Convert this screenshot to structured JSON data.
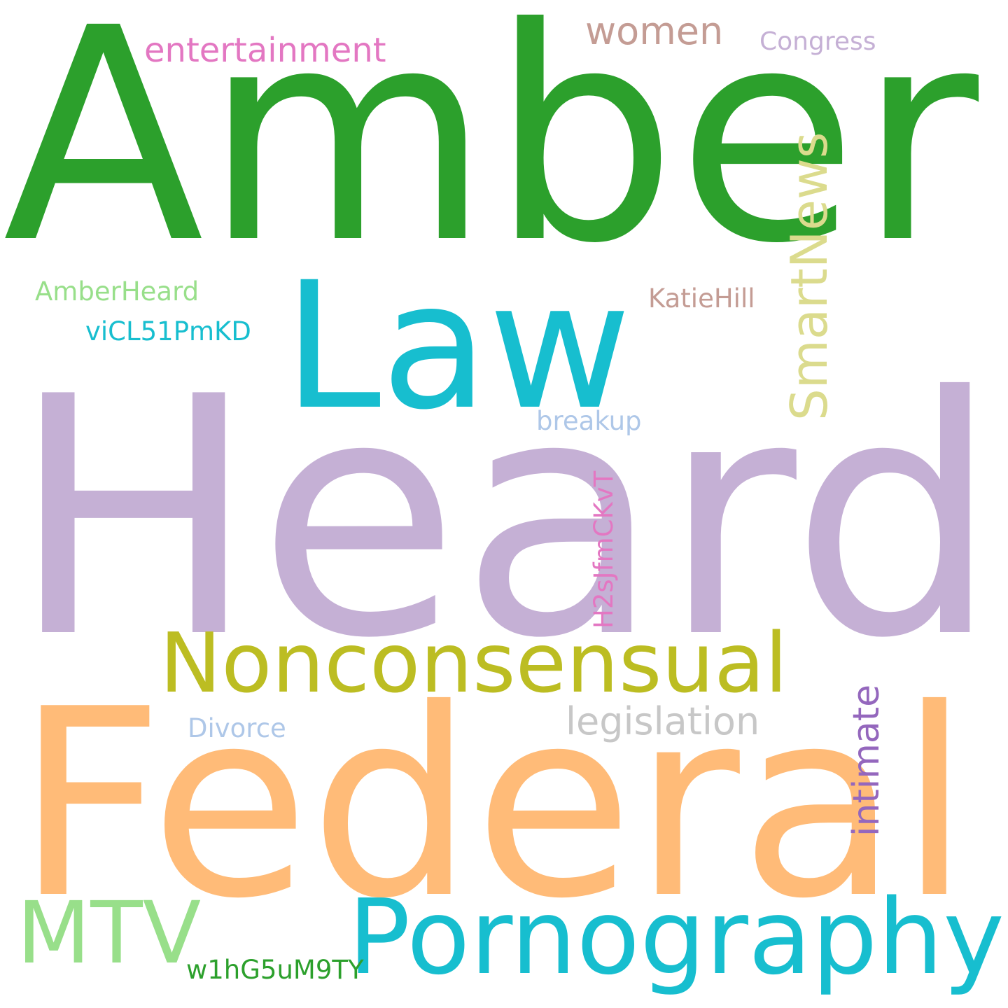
{
  "words": [
    {
      "id": "amber",
      "text": "Amber",
      "color": "#2ca02c"
    },
    {
      "id": "heard",
      "text": "Heard",
      "color": "#c5b0d5"
    },
    {
      "id": "federal",
      "text": "Federal",
      "color": "#ffbb78"
    },
    {
      "id": "law",
      "text": "Law",
      "color": "#17becf"
    },
    {
      "id": "nonconsensual",
      "text": "Nonconsensual",
      "color": "#bcbd22"
    },
    {
      "id": "pornography",
      "text": "Pornography",
      "color": "#17becf"
    },
    {
      "id": "mtv",
      "text": "MTV",
      "color": "#98df8a"
    },
    {
      "id": "entertainment",
      "text": "entertainment",
      "color": "#e377c2"
    },
    {
      "id": "women",
      "text": "women",
      "color": "#c49c94"
    },
    {
      "id": "congress",
      "text": "Congress",
      "color": "#c5b0d5"
    },
    {
      "id": "smartnews",
      "text": "SmartNews",
      "color": "#dbdb8d"
    },
    {
      "id": "amberheard",
      "text": "AmberHeard",
      "color": "#98df8a"
    },
    {
      "id": "vicl",
      "text": "viCL51PmKD",
      "color": "#17becf"
    },
    {
      "id": "katiehill",
      "text": "KatieHill",
      "color": "#c49c94"
    },
    {
      "id": "breakup",
      "text": "breakup",
      "color": "#aec7e8"
    },
    {
      "id": "h2s",
      "text": "H2sJfmCKvT",
      "color": "#e377c2"
    },
    {
      "id": "legislation",
      "text": "legislation",
      "color": "#c7c7c7"
    },
    {
      "id": "intimate",
      "text": "intimate",
      "color": "#9467bd"
    },
    {
      "id": "divorce",
      "text": "Divorce",
      "color": "#aec7e8"
    },
    {
      "id": "w1h",
      "text": "w1hG5uM9TY",
      "color": "#2ca02c"
    }
  ]
}
